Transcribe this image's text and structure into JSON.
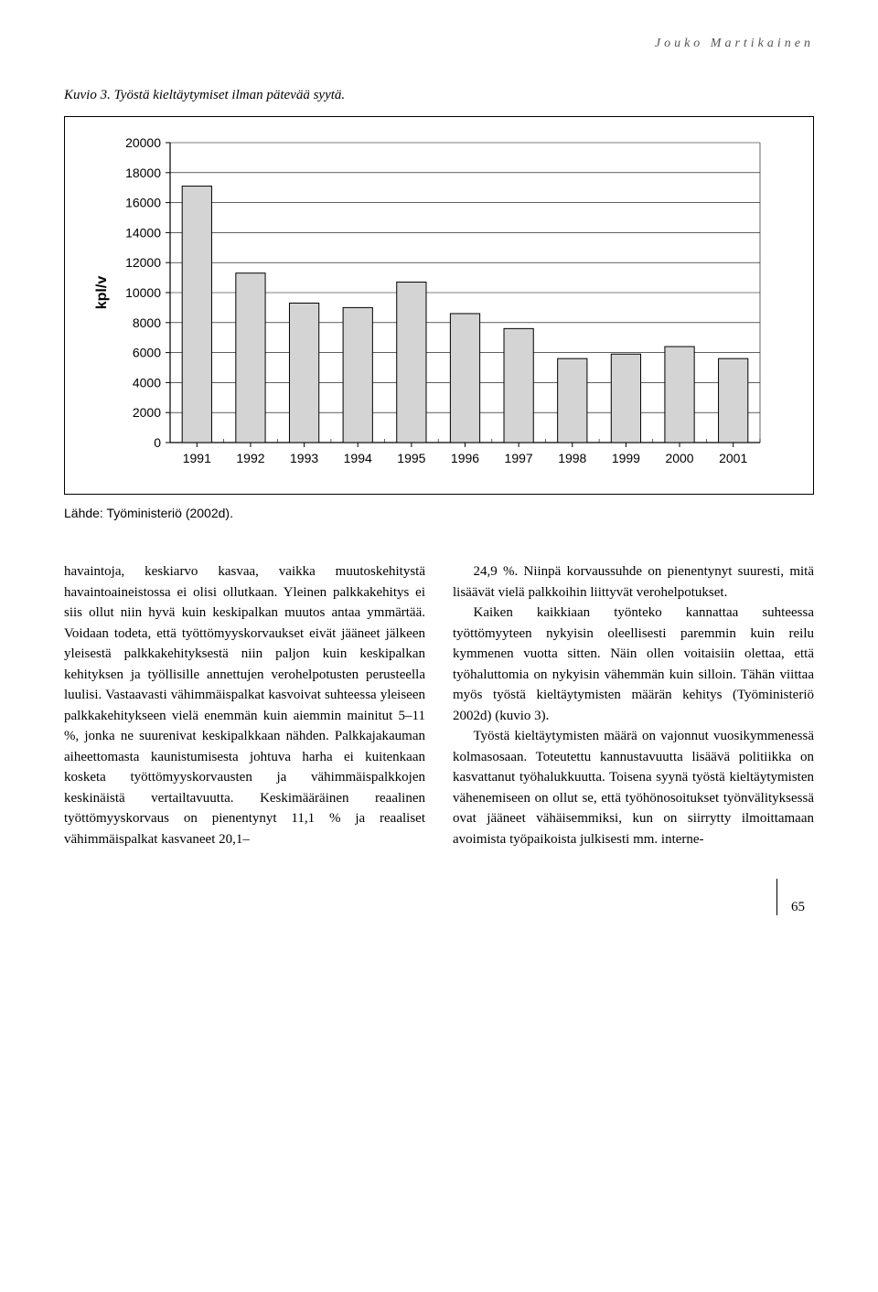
{
  "author_header": "Jouko Martikainen",
  "figure_caption": "Kuvio 3. Työstä kieltäytymiset ilman pätevää syytä.",
  "source_note": "Lähde: Työministeriö (2002d).",
  "page_number": "65",
  "chart": {
    "type": "bar",
    "ylabel": "kpl/v",
    "ylabel_fontsize": 16,
    "ylabel_weight": "bold",
    "ytick_labels": [
      "0",
      "2000",
      "4000",
      "6000",
      "8000",
      "10000",
      "12000",
      "14000",
      "16000",
      "18000",
      "20000"
    ],
    "ytick_values": [
      0,
      2000,
      4000,
      6000,
      8000,
      10000,
      12000,
      14000,
      16000,
      18000,
      20000
    ],
    "ylim": [
      0,
      20000
    ],
    "xtick_labels": [
      "1991",
      "1992",
      "1993",
      "1994",
      "1995",
      "1996",
      "1997",
      "1998",
      "1999",
      "2000",
      "2001"
    ],
    "values": [
      17100,
      11300,
      9300,
      9000,
      10700,
      8600,
      7600,
      5600,
      5900,
      6400,
      5600
    ],
    "bar_fill": "#d4d4d4",
    "bar_stroke": "#000000",
    "grid_color": "#000000",
    "axis_color": "#000000",
    "background_color": "#ffffff",
    "tick_fontsize": 14,
    "bar_width_ratio": 0.55
  },
  "body": {
    "col1_p1": "havaintoja, keskiarvo kasvaa, vaikka muutoskehitystä havaintoaineistossa ei olisi ollutkaan. Yleinen palkkakehitys ei siis ollut niin hyvä kuin keskipalkan muutos antaa ymmärtää. Voidaan todeta, että työttömyyskorvaukset eivät jääneet jälkeen yleisestä palkkakehityksestä niin paljon kuin keskipalkan kehityksen ja työllisille annettujen verohelpotusten perusteella luulisi. Vastaavasti vähimmäispalkat kasvoivat suhteessa yleiseen palkkakehitykseen vielä enemmän kuin aiemmin mainitut 5–11 %, jonka ne suurenivat keskipalkkaan nähden. Palkkajakauman aiheettomasta kaunistumisesta johtuva harha ei kuitenkaan kosketa työttömyyskorvausten ja vähimmäispalkkojen keskinäistä vertailtavuutta. Keskimääräinen reaalinen työttömyyskorvaus on pienentynyt 11,1 % ja reaaliset vähimmäispalkat kasvaneet 20,1–",
    "col2_p1": "24,9 %. Niinpä korvaussuhde on pienentynyt suuresti, mitä lisäävät vielä palkkoihin liittyvät verohelpotukset.",
    "col2_p2": "Kaiken kaikkiaan työnteko kannattaa suhteessa työttömyyteen nykyisin oleellisesti paremmin kuin reilu kymmenen vuotta sitten. Näin ollen voitaisiin olettaa, että työhaluttomia on nykyisin vähemmän kuin silloin. Tähän viittaa myös työstä kieltäytymisten määrän kehitys (Työministeriö 2002d) (kuvio 3).",
    "col2_p3": "Työstä kieltäytymisten määrä on vajonnut vuosikymmenessä kolmasosaan. Toteutettu kannustavuutta lisäävä politiikka on kasvattanut työhalukkuutta. Toisena syynä työstä kieltäytymisten vähenemiseen on ollut se, että työhönosoitukset työnvälityksessä ovat jääneet vähäisemmiksi, kun on siirrytty ilmoittamaan avoimista työpaikoista julkisesti mm. interne-"
  }
}
